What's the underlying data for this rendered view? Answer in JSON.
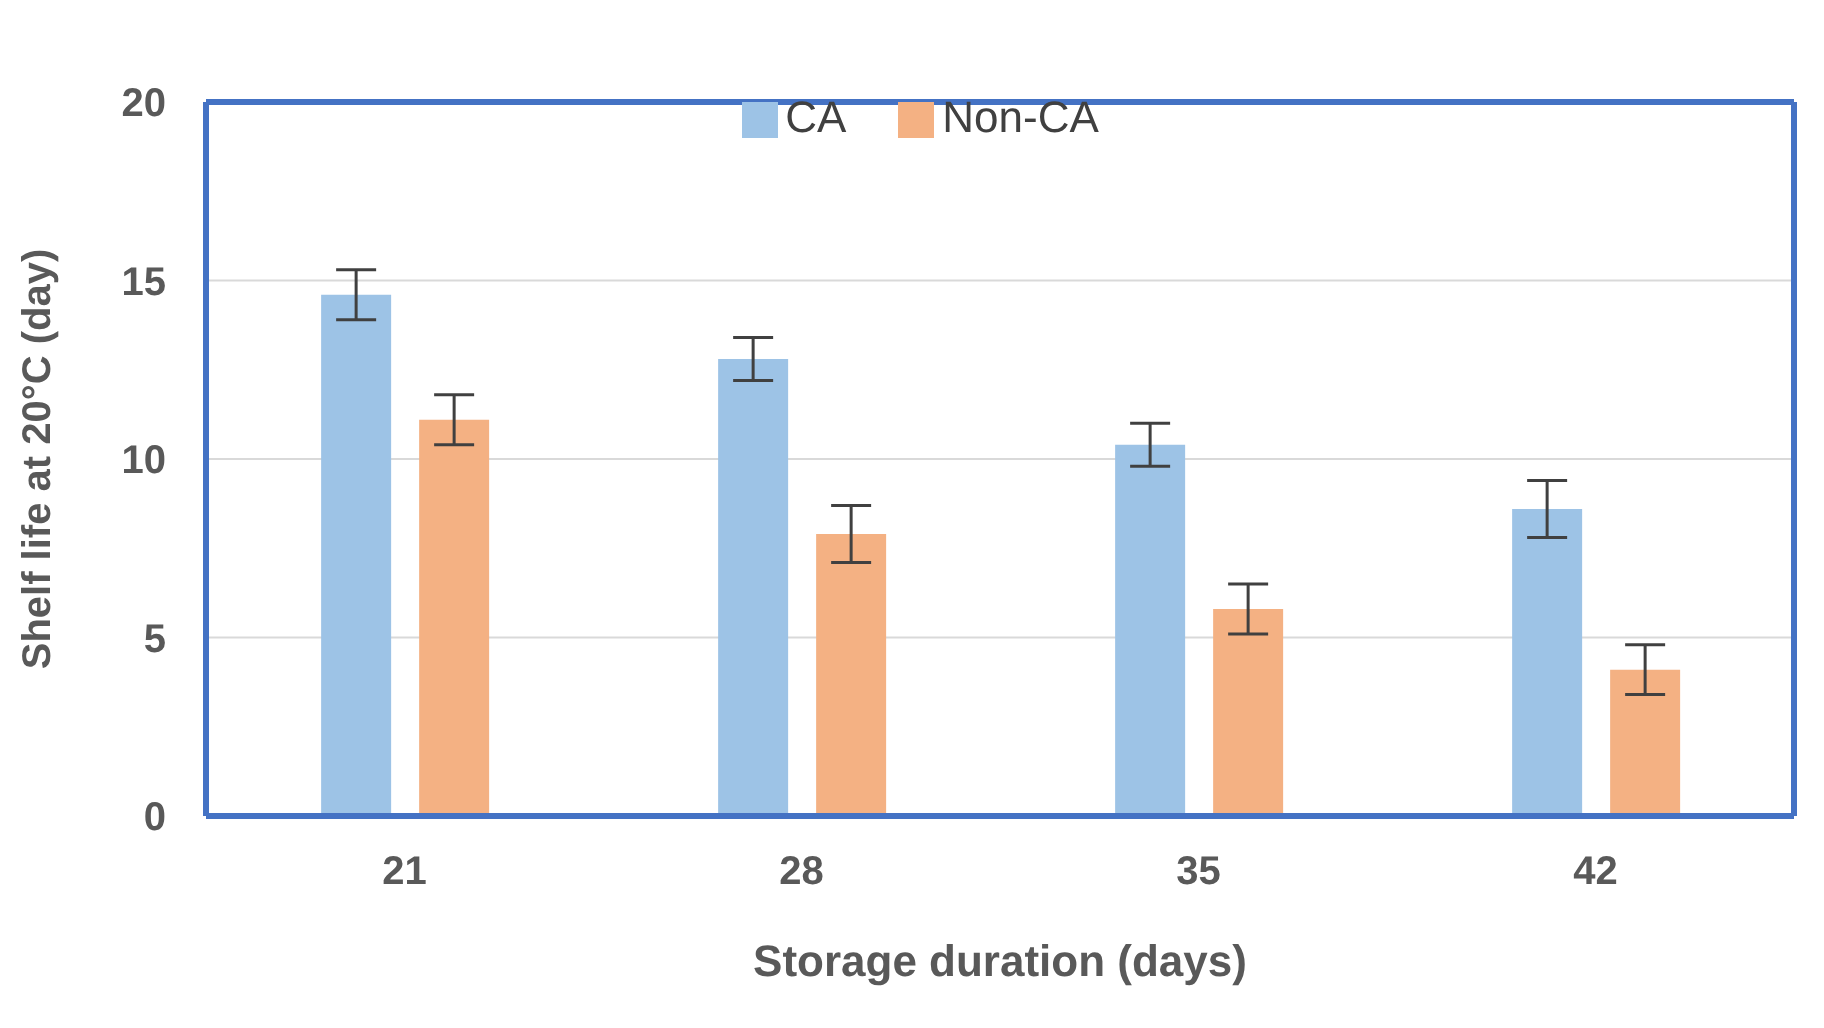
{
  "chart_data": {
    "type": "bar",
    "xlabel": "Storage duration (days)",
    "ylabel": "Shelf life at 20°C  (day)",
    "categories": [
      "21",
      "28",
      "35",
      "42"
    ],
    "series": [
      {
        "name": "CA",
        "color": "#9dc3e6",
        "values": [
          14.6,
          12.8,
          10.4,
          8.6
        ],
        "errors": [
          0.7,
          0.6,
          0.6,
          0.8
        ]
      },
      {
        "name": "Non-CA",
        "color": "#f4b183",
        "values": [
          11.1,
          7.9,
          5.8,
          4.1
        ],
        "errors": [
          0.7,
          0.8,
          0.7,
          0.7
        ]
      }
    ],
    "ylim": [
      0,
      20
    ],
    "yticks": [
      0,
      5,
      10,
      15,
      20
    ],
    "grid": "y",
    "legend": "top"
  }
}
